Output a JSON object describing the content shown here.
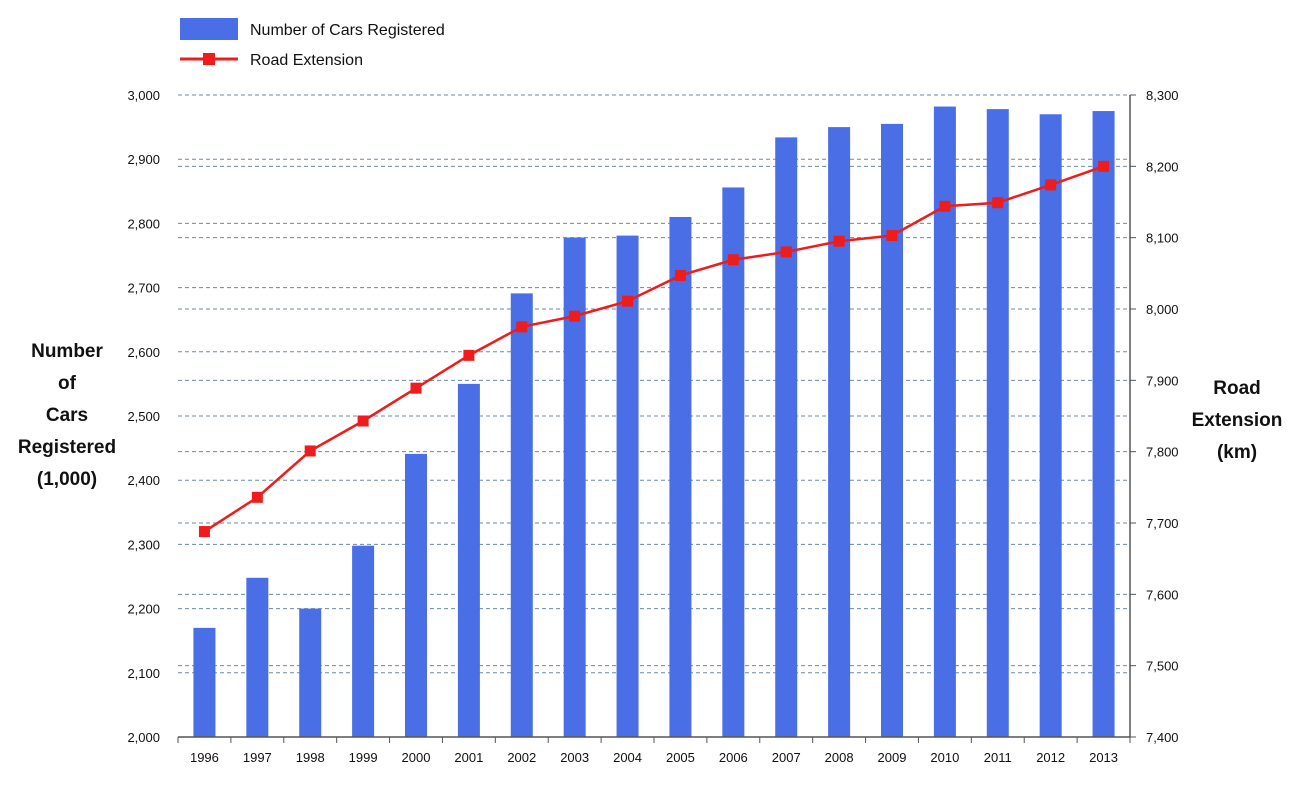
{
  "chart_data": {
    "type": "bar",
    "categories": [
      "1996",
      "1997",
      "1998",
      "1999",
      "2000",
      "2001",
      "2002",
      "2003",
      "2004",
      "2005",
      "2006",
      "2007",
      "2008",
      "2009",
      "2010",
      "2011",
      "2012",
      "2013"
    ],
    "series": [
      {
        "name": "Number of Cars Registered",
        "type": "bar",
        "axis": "left",
        "color": "#4a6ee6",
        "values": [
          2170,
          2248,
          2200,
          2298,
          2441,
          2550,
          2691,
          2778,
          2781,
          2810,
          2856,
          2934,
          2950,
          2955,
          2982,
          2978,
          2970,
          2975
        ]
      },
      {
        "name": "Road Extension",
        "type": "line",
        "axis": "right",
        "color": "#ee1c1c",
        "values": [
          7688,
          7736,
          7801,
          7843,
          7889,
          7935,
          7975,
          7990,
          8011,
          8047,
          8069,
          8080,
          8095,
          8103,
          8144,
          8149,
          8174,
          8200
        ]
      }
    ],
    "y_left": {
      "label_lines": [
        "Number",
        "of",
        "Cars",
        "Registered",
        "(1,000)"
      ],
      "range": [
        2000,
        3000
      ],
      "ticks": [
        "2,000",
        "2,100",
        "2,200",
        "2,300",
        "2,400",
        "2,500",
        "2,600",
        "2,700",
        "2,800",
        "2,900",
        "3,000"
      ]
    },
    "y_right": {
      "label_lines": [
        "Road",
        "Extension",
        "(km)"
      ],
      "range": [
        7400,
        8300
      ],
      "ticks": [
        "7,400",
        "7,500",
        "7,600",
        "7,700",
        "7,800",
        "7,900",
        "8,000",
        "8,100",
        "8,200",
        "8,300"
      ]
    },
    "grid": true,
    "legend": {
      "position": "top-left",
      "entries": [
        "Number of Cars Registered",
        "Road Extension"
      ]
    }
  }
}
